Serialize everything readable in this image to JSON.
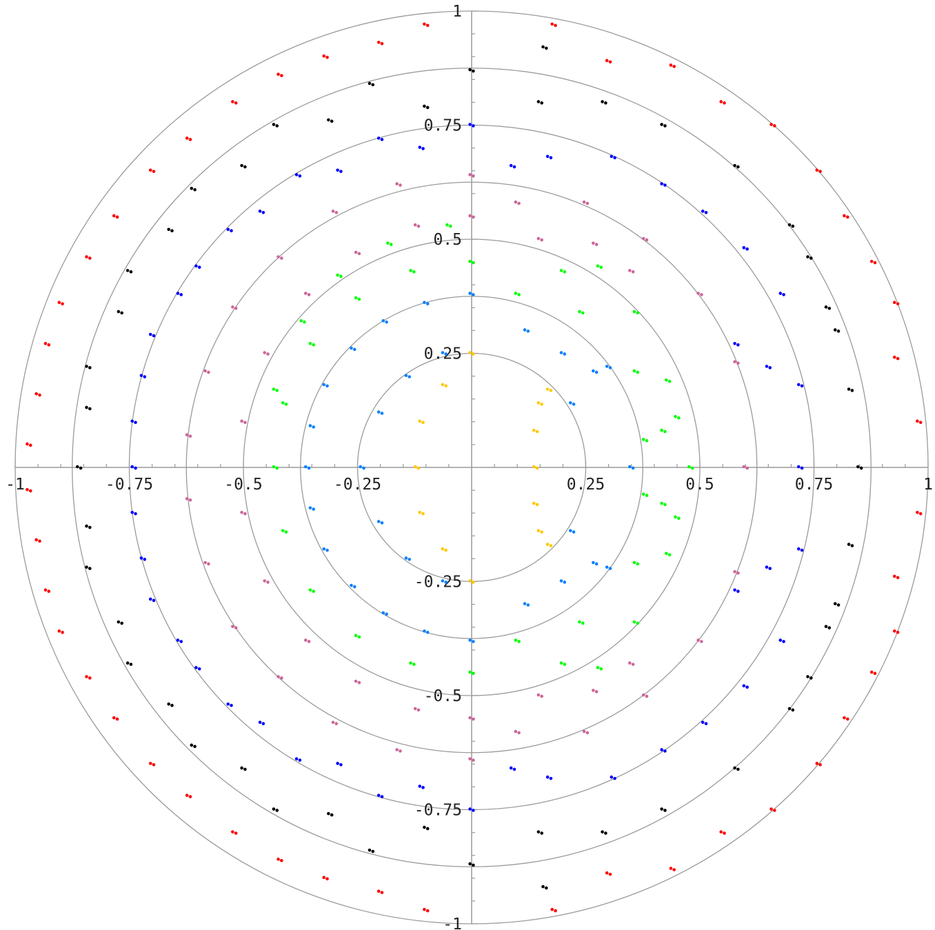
{
  "chart_data": {
    "type": "scatter",
    "title": "",
    "xlabel": "",
    "ylabel": "",
    "xlim": [
      -1,
      1
    ],
    "ylim": [
      -1,
      1
    ],
    "polar_grid": true,
    "grid_radii": [
      0.25,
      0.375,
      0.5,
      0.625,
      0.75,
      0.875,
      1.0
    ],
    "x_ticks": [
      {
        "value": -1,
        "label": "-1"
      },
      {
        "value": -0.75,
        "label": "-0.75"
      },
      {
        "value": -0.5,
        "label": "-0.5"
      },
      {
        "value": -0.25,
        "label": "-0.25"
      },
      {
        "value": 0.25,
        "label": "0.25"
      },
      {
        "value": 0.5,
        "label": "0.5"
      },
      {
        "value": 0.75,
        "label": "0.75"
      },
      {
        "value": 1,
        "label": "1"
      }
    ],
    "y_ticks": [
      {
        "value": 1,
        "label": "1"
      },
      {
        "value": 0.75,
        "label": "0.75"
      },
      {
        "value": 0.5,
        "label": "0.5"
      },
      {
        "value": 0.25,
        "label": "0.25"
      },
      {
        "value": -0.25,
        "label": "-0.25"
      },
      {
        "value": -0.5,
        "label": "-0.5"
      },
      {
        "value": -0.75,
        "label": "-0.75"
      },
      {
        "value": -1,
        "label": "-1"
      }
    ],
    "series": [
      {
        "color": "#ffc800",
        "points": [
          [
            0.0,
            0.25
          ],
          [
            -0.06,
            0.18
          ],
          [
            -0.11,
            0.1
          ],
          [
            -0.12,
            0.0
          ],
          [
            -0.11,
            -0.1
          ],
          [
            -0.06,
            -0.18
          ],
          [
            0.0,
            -0.25
          ],
          [
            0.15,
            0.14
          ],
          [
            0.14,
            0.08
          ],
          [
            0.14,
            0.0
          ],
          [
            0.14,
            -0.08
          ],
          [
            0.15,
            -0.14
          ],
          [
            0.17,
            0.17
          ],
          [
            0.17,
            -0.17
          ]
        ]
      },
      {
        "color": "#0a80ff",
        "points": [
          [
            0.0,
            0.38
          ],
          [
            -0.1,
            0.36
          ],
          [
            -0.19,
            0.32
          ],
          [
            -0.26,
            0.26
          ],
          [
            -0.32,
            0.18
          ],
          [
            -0.35,
            0.09
          ],
          [
            -0.36,
            0.0
          ],
          [
            -0.35,
            -0.09
          ],
          [
            -0.32,
            -0.18
          ],
          [
            -0.26,
            -0.26
          ],
          [
            -0.19,
            -0.32
          ],
          [
            -0.1,
            -0.36
          ],
          [
            0.0,
            -0.38
          ],
          [
            0.12,
            0.3
          ],
          [
            0.2,
            0.25
          ],
          [
            0.2,
            -0.25
          ],
          [
            0.12,
            -0.3
          ],
          [
            -0.06,
            0.25
          ],
          [
            -0.14,
            0.2
          ],
          [
            -0.2,
            0.12
          ],
          [
            -0.24,
            0.0
          ],
          [
            -0.2,
            -0.12
          ],
          [
            -0.14,
            -0.2
          ],
          [
            -0.06,
            -0.25
          ],
          [
            0.22,
            0.14
          ],
          [
            0.27,
            0.21
          ],
          [
            0.3,
            0.22
          ],
          [
            0.22,
            -0.14
          ],
          [
            0.27,
            -0.21
          ],
          [
            0.3,
            -0.22
          ],
          [
            0.35,
            0.0
          ]
        ]
      },
      {
        "color": "#00ff00",
        "points": [
          [
            0.0,
            0.45
          ],
          [
            -0.13,
            0.43
          ],
          [
            -0.25,
            0.37
          ],
          [
            -0.35,
            0.27
          ],
          [
            -0.41,
            0.14
          ],
          [
            -0.43,
            0.0
          ],
          [
            -0.41,
            -0.14
          ],
          [
            -0.35,
            -0.27
          ],
          [
            -0.25,
            -0.37
          ],
          [
            -0.13,
            -0.43
          ],
          [
            0.0,
            -0.45
          ],
          [
            0.1,
            0.38
          ],
          [
            0.2,
            0.43
          ],
          [
            0.28,
            0.44
          ],
          [
            0.1,
            -0.38
          ],
          [
            0.2,
            -0.43
          ],
          [
            0.28,
            -0.44
          ],
          [
            0.36,
            0.21
          ],
          [
            0.43,
            0.19
          ],
          [
            0.45,
            0.11
          ],
          [
            0.48,
            0.0
          ],
          [
            0.45,
            -0.11
          ],
          [
            0.43,
            -0.19
          ],
          [
            0.36,
            -0.21
          ],
          [
            0.38,
            0.06
          ],
          [
            0.38,
            -0.06
          ],
          [
            0.42,
            0.08
          ],
          [
            0.42,
            -0.08
          ],
          [
            -0.05,
            0.53
          ],
          [
            -0.18,
            0.49
          ],
          [
            -0.29,
            0.42
          ],
          [
            -0.37,
            0.32
          ],
          [
            -0.43,
            0.17
          ],
          [
            0.24,
            0.34
          ],
          [
            0.36,
            0.34
          ],
          [
            0.24,
            -0.34
          ],
          [
            0.36,
            -0.34
          ]
        ]
      },
      {
        "color": "#cc6699",
        "points": [
          [
            0.0,
            0.64
          ],
          [
            -0.16,
            0.62
          ],
          [
            -0.3,
            0.56
          ],
          [
            -0.42,
            0.46
          ],
          [
            -0.52,
            0.35
          ],
          [
            -0.58,
            0.21
          ],
          [
            -0.62,
            0.07
          ],
          [
            -0.62,
            -0.07
          ],
          [
            -0.58,
            -0.21
          ],
          [
            -0.52,
            -0.35
          ],
          [
            -0.42,
            -0.46
          ],
          [
            -0.3,
            -0.56
          ],
          [
            -0.16,
            -0.62
          ],
          [
            0.0,
            -0.64
          ],
          [
            0.1,
            0.58
          ],
          [
            0.25,
            0.58
          ],
          [
            0.38,
            0.5
          ],
          [
            0.5,
            0.38
          ],
          [
            0.58,
            0.23
          ],
          [
            0.6,
            0.0
          ],
          [
            0.58,
            -0.23
          ],
          [
            0.5,
            -0.38
          ],
          [
            0.38,
            -0.5
          ],
          [
            0.25,
            -0.58
          ],
          [
            0.1,
            -0.58
          ],
          [
            0.27,
            0.49
          ],
          [
            0.35,
            0.43
          ],
          [
            0.27,
            -0.49
          ],
          [
            0.35,
            -0.43
          ],
          [
            0.0,
            0.55
          ],
          [
            -0.12,
            0.53
          ],
          [
            -0.25,
            0.47
          ],
          [
            -0.36,
            0.38
          ],
          [
            -0.45,
            0.25
          ],
          [
            -0.5,
            0.1
          ],
          [
            -0.5,
            -0.1
          ],
          [
            -0.45,
            -0.25
          ],
          [
            -0.36,
            -0.38
          ],
          [
            -0.25,
            -0.47
          ],
          [
            -0.12,
            -0.53
          ],
          [
            0.0,
            -0.55
          ],
          [
            0.15,
            0.5
          ],
          [
            0.15,
            -0.5
          ]
        ]
      },
      {
        "color": "#0000ff",
        "points": [
          [
            0.0,
            0.75
          ],
          [
            -0.2,
            0.72
          ],
          [
            -0.38,
            0.64
          ],
          [
            -0.53,
            0.52
          ],
          [
            -0.64,
            0.38
          ],
          [
            -0.72,
            0.2
          ],
          [
            -0.74,
            0.0
          ],
          [
            -0.72,
            -0.2
          ],
          [
            -0.64,
            -0.38
          ],
          [
            -0.53,
            -0.52
          ],
          [
            -0.38,
            -0.64
          ],
          [
            -0.2,
            -0.72
          ],
          [
            0.0,
            -0.75
          ],
          [
            0.09,
            0.66
          ],
          [
            0.17,
            0.68
          ],
          [
            0.31,
            0.68
          ],
          [
            0.42,
            0.62
          ],
          [
            0.51,
            0.56
          ],
          [
            0.6,
            0.48
          ],
          [
            0.68,
            0.38
          ],
          [
            0.72,
            0.18
          ],
          [
            0.72,
            0.0
          ],
          [
            0.72,
            -0.18
          ],
          [
            0.68,
            -0.38
          ],
          [
            0.6,
            -0.48
          ],
          [
            0.51,
            -0.56
          ],
          [
            0.42,
            -0.62
          ],
          [
            0.31,
            -0.68
          ],
          [
            0.17,
            -0.68
          ],
          [
            0.09,
            -0.66
          ],
          [
            -0.11,
            0.7
          ],
          [
            -0.29,
            0.65
          ],
          [
            -0.46,
            0.56
          ],
          [
            -0.6,
            0.44
          ],
          [
            -0.7,
            0.29
          ],
          [
            -0.74,
            0.1
          ],
          [
            -0.74,
            -0.1
          ],
          [
            -0.7,
            -0.29
          ],
          [
            -0.6,
            -0.44
          ],
          [
            -0.46,
            -0.56
          ],
          [
            -0.29,
            -0.65
          ],
          [
            -0.11,
            -0.7
          ],
          [
            0.58,
            0.27
          ],
          [
            0.65,
            0.22
          ],
          [
            0.58,
            -0.27
          ],
          [
            0.65,
            -0.22
          ]
        ]
      },
      {
        "color": "#000000",
        "points": [
          [
            0.0,
            0.87
          ],
          [
            -0.22,
            0.84
          ],
          [
            -0.43,
            0.75
          ],
          [
            -0.61,
            0.61
          ],
          [
            -0.75,
            0.43
          ],
          [
            -0.84,
            0.22
          ],
          [
            -0.86,
            0.0
          ],
          [
            -0.84,
            -0.22
          ],
          [
            -0.75,
            -0.43
          ],
          [
            -0.61,
            -0.61
          ],
          [
            -0.43,
            -0.75
          ],
          [
            -0.22,
            -0.84
          ],
          [
            0.0,
            -0.87
          ],
          [
            0.15,
            0.8
          ],
          [
            0.29,
            0.8
          ],
          [
            0.42,
            0.75
          ],
          [
            0.58,
            0.66
          ],
          [
            0.7,
            0.53
          ],
          [
            0.78,
            0.35
          ],
          [
            0.83,
            0.17
          ],
          [
            0.85,
            0.0
          ],
          [
            0.83,
            -0.17
          ],
          [
            0.78,
            -0.35
          ],
          [
            0.7,
            -0.53
          ],
          [
            0.58,
            -0.66
          ],
          [
            0.42,
            -0.75
          ],
          [
            0.29,
            -0.8
          ],
          [
            0.15,
            -0.8
          ],
          [
            -0.1,
            0.79
          ],
          [
            -0.31,
            0.76
          ],
          [
            -0.5,
            0.66
          ],
          [
            -0.66,
            0.52
          ],
          [
            -0.77,
            0.34
          ],
          [
            -0.84,
            0.13
          ],
          [
            -0.84,
            -0.13
          ],
          [
            -0.77,
            -0.34
          ],
          [
            -0.66,
            -0.52
          ],
          [
            -0.5,
            -0.66
          ],
          [
            -0.31,
            -0.76
          ],
          [
            -0.1,
            -0.79
          ],
          [
            0.16,
            0.92
          ],
          [
            0.16,
            -0.92
          ],
          [
            0.74,
            0.46
          ],
          [
            0.74,
            -0.46
          ],
          [
            0.8,
            0.3
          ],
          [
            0.8,
            -0.3
          ]
        ]
      },
      {
        "color": "#ff0000",
        "points": [
          [
            0.18,
            0.97
          ],
          [
            0.44,
            0.88
          ],
          [
            0.66,
            0.75
          ],
          [
            0.82,
            0.55
          ],
          [
            0.93,
            0.36
          ],
          [
            0.98,
            0.1
          ],
          [
            0.98,
            -0.1
          ],
          [
            0.93,
            -0.36
          ],
          [
            0.82,
            -0.55
          ],
          [
            0.66,
            -0.75
          ],
          [
            0.44,
            -0.88
          ],
          [
            0.18,
            -0.97
          ],
          [
            -0.1,
            0.97
          ],
          [
            -0.32,
            0.9
          ],
          [
            -0.52,
            0.8
          ],
          [
            -0.7,
            0.65
          ],
          [
            -0.84,
            0.46
          ],
          [
            -0.93,
            0.27
          ],
          [
            -0.97,
            0.05
          ],
          [
            -0.97,
            -0.05
          ],
          [
            -0.93,
            -0.27
          ],
          [
            -0.84,
            -0.46
          ],
          [
            -0.7,
            -0.65
          ],
          [
            -0.52,
            -0.8
          ],
          [
            -0.32,
            -0.9
          ],
          [
            -0.1,
            -0.97
          ],
          [
            0.3,
            0.89
          ],
          [
            0.3,
            -0.89
          ],
          [
            0.55,
            0.8
          ],
          [
            0.55,
            -0.8
          ],
          [
            0.76,
            0.65
          ],
          [
            0.76,
            -0.65
          ],
          [
            0.88,
            0.45
          ],
          [
            0.88,
            -0.45
          ],
          [
            0.93,
            0.24
          ],
          [
            0.93,
            -0.24
          ],
          [
            -0.2,
            0.93
          ],
          [
            -0.2,
            -0.93
          ],
          [
            -0.42,
            0.86
          ],
          [
            -0.42,
            -0.86
          ],
          [
            -0.62,
            0.72
          ],
          [
            -0.62,
            -0.72
          ],
          [
            -0.78,
            0.55
          ],
          [
            -0.78,
            -0.55
          ],
          [
            -0.9,
            0.36
          ],
          [
            -0.9,
            -0.36
          ],
          [
            -0.95,
            0.16
          ],
          [
            -0.95,
            -0.16
          ]
        ]
      }
    ]
  }
}
